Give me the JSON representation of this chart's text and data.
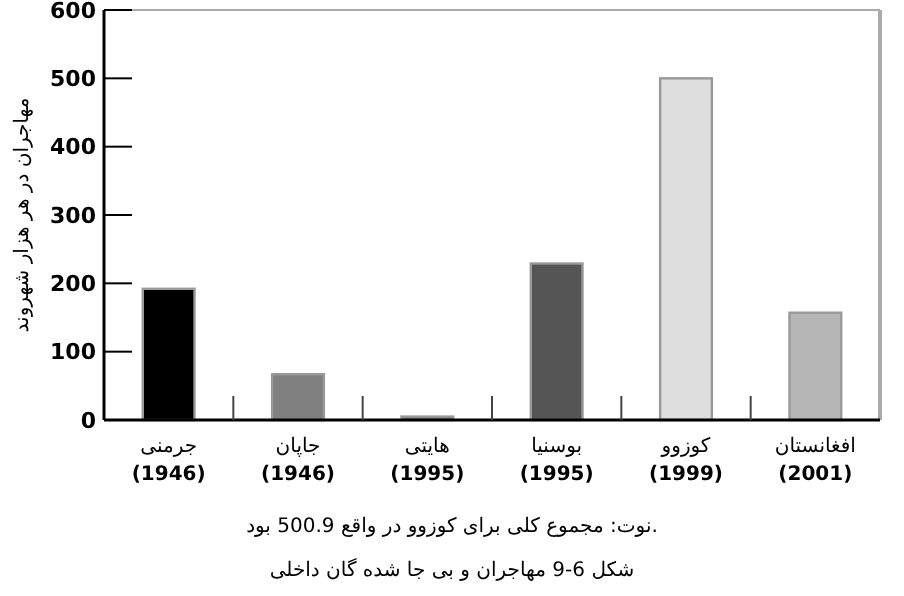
{
  "chart_data": {
    "type": "bar",
    "ylabel": "مهاجران در هر هزار شهروند",
    "categories": [
      "جرمنی\n(1946)",
      "جاپان\n(1946)",
      "هایتی\n(1995)",
      "بوسنیا\n(1995)",
      "کوزوو\n(1999)",
      "افغانستان\n(2001)"
    ],
    "values": [
      192,
      67,
      5,
      229,
      500,
      157
    ],
    "colors": [
      "#000000",
      "#808080",
      "#707070",
      "#555555",
      "#dedede",
      "#b5b5b5"
    ],
    "ylim": [
      0,
      600
    ],
    "yticks": [
      0,
      100,
      200,
      300,
      400,
      500,
      600
    ],
    "grid": false,
    "annotations": [
      "نوت: مجموع کلی برای کوزوو در واقع 500.9 بود.",
      "شکل 6-9 مهاجران و بی جا شده گان داخلی"
    ]
  }
}
